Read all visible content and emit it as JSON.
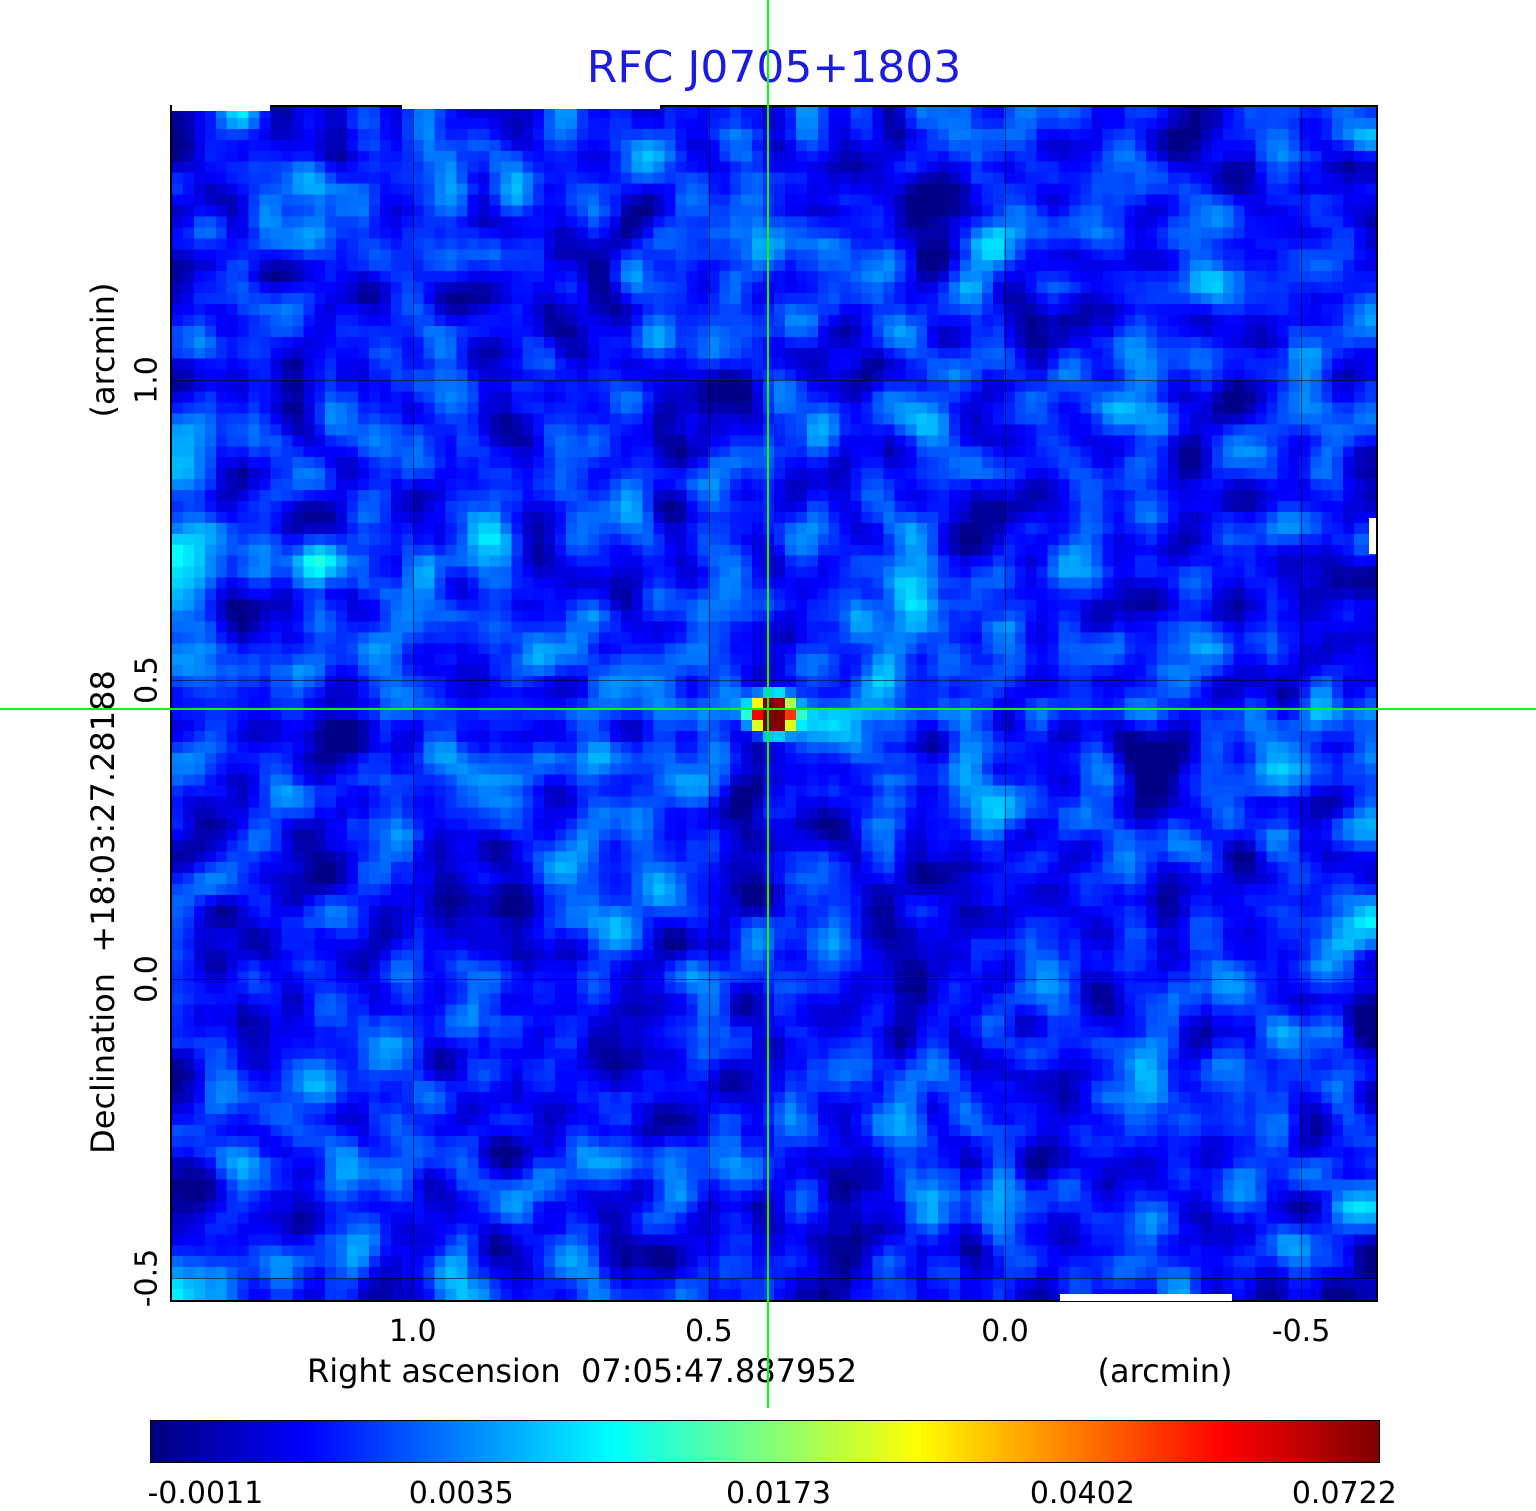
{
  "title": "RFC J0705+1803",
  "colors": {
    "title": "#1c1ce0",
    "crosshair": "#00ff00",
    "grid": "#000000",
    "frame": "#000000",
    "background": "#ffffff"
  },
  "y_axis": {
    "unit_label": "(arcmin)",
    "label": "Declination  +18:03:27.28188",
    "tick_labels": [
      "1.0",
      "0.5",
      "0.0",
      "-0.5"
    ]
  },
  "x_axis": {
    "label": "Right ascension  07:05:47.887952",
    "unit_label": "(arcmin)",
    "tick_labels": [
      "1.0",
      "0.5",
      "0.0",
      "-0.5"
    ]
  },
  "colorbar": {
    "colormap": "jet",
    "tick_labels": [
      "-0.0011",
      "0.0035",
      "0.0173",
      "0.0402",
      "0.0722"
    ]
  },
  "chart_data": {
    "type": "heatmap",
    "title": "RFC J0705+1803",
    "xlabel": "Right ascension 07:05:47.887952 (arcmin)",
    "ylabel": "Declination +18:03:27.28188 (arcmin)",
    "x_ticks": [
      1.0,
      0.5,
      0.0,
      -0.5
    ],
    "y_ticks": [
      1.0,
      0.5,
      0.0,
      -0.5
    ],
    "xlim": [
      1.41,
      -0.63
    ],
    "ylim": [
      -0.54,
      1.46
    ],
    "grid": true,
    "colormap": "jet",
    "colorbar_ticks": [
      -0.0011,
      0.0035,
      0.0173,
      0.0402,
      0.0722
    ],
    "intensity_min": -0.0011,
    "intensity_max": 0.0722,
    "source": {
      "ra": "07:05:47.887952",
      "dec": "+18:03:27.28188",
      "x_arcmin": 0.4,
      "y_arcmin": 0.45,
      "peak_intensity": 0.0722
    },
    "crosshair": {
      "x_arcmin": 0.4,
      "y_arcmin": 0.45
    }
  }
}
